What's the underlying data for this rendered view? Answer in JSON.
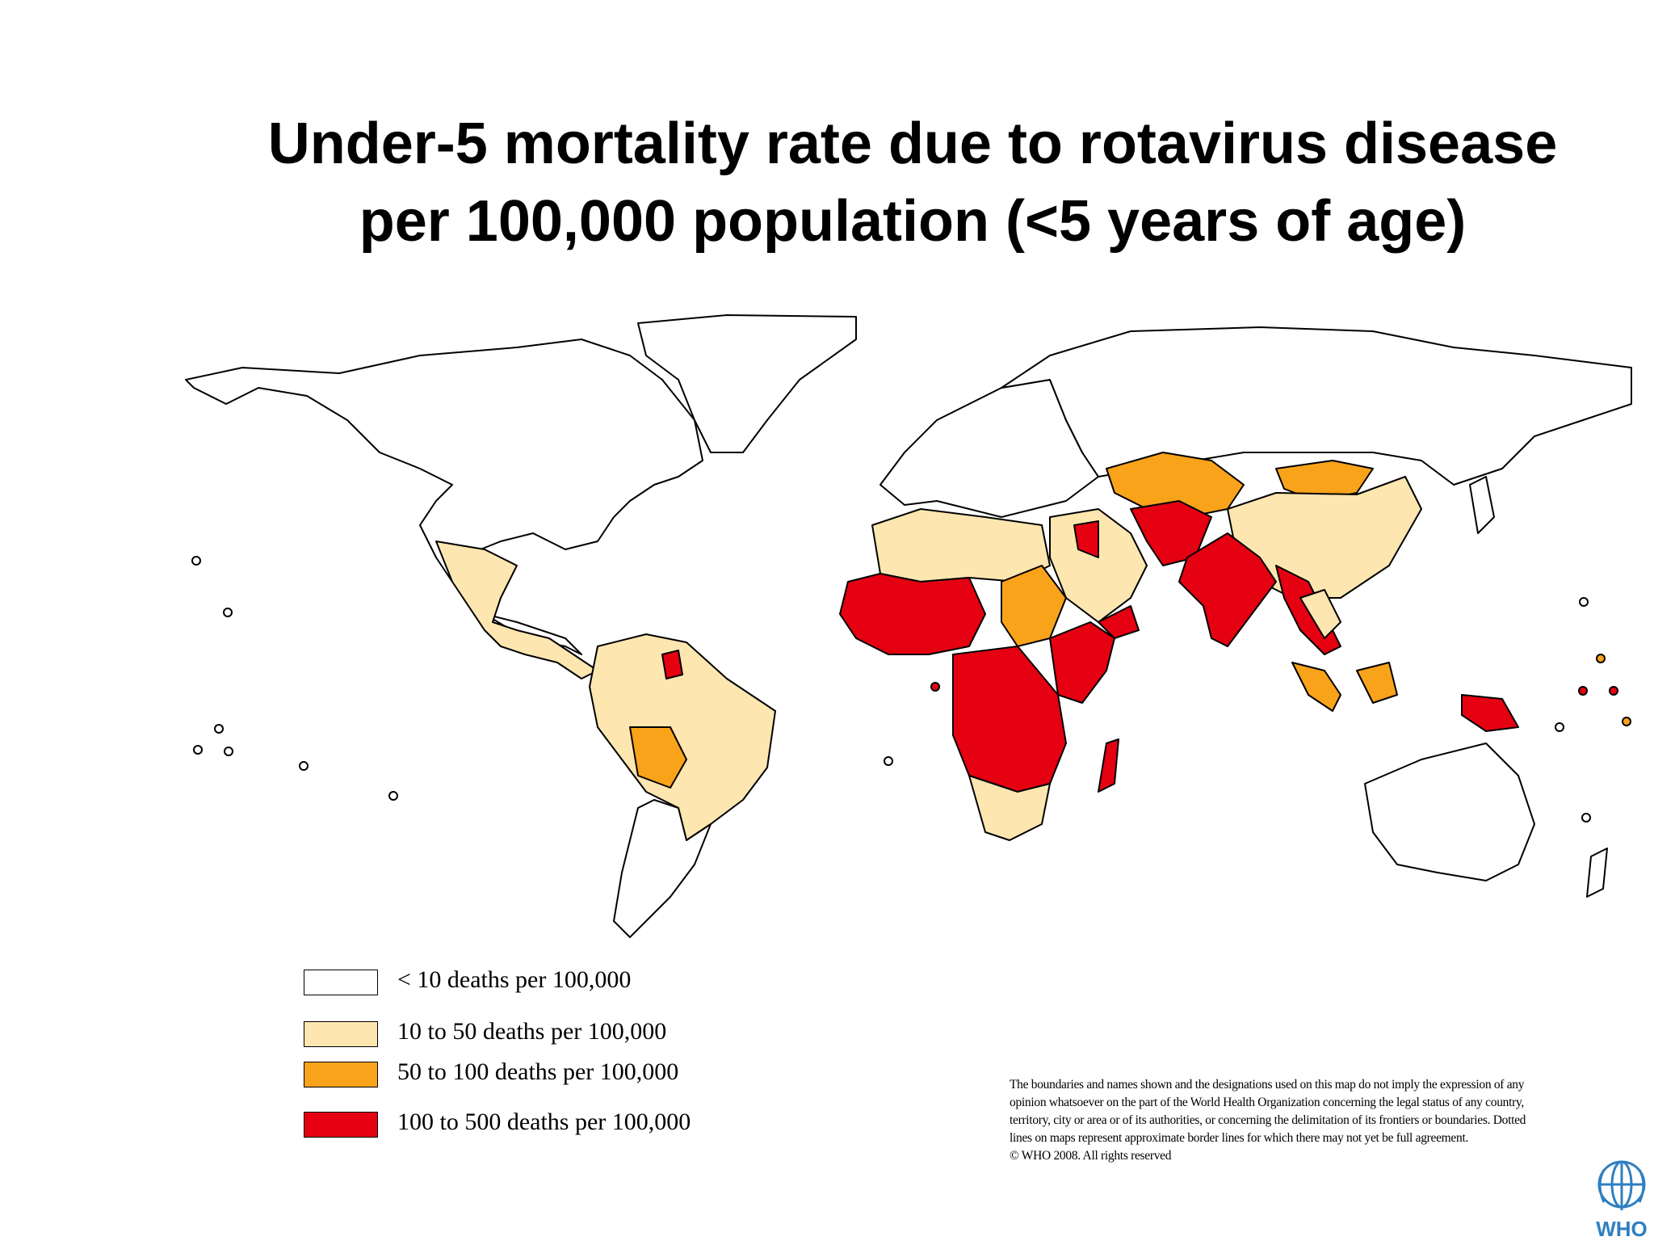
{
  "title": {
    "line1": "Under-5 mortality rate due to rotavirus disease",
    "line2": "per 100,000 population (<5 years of age)"
  },
  "colors": {
    "lt10": "#ffffff",
    "c10_50": "#fde6b0",
    "c50_100": "#f9a31b",
    "c100_500": "#e50012",
    "nodata": "#c8c8c8",
    "outline": "#000000"
  },
  "legend": [
    {
      "label": "< 10 deaths per 100,000",
      "color": "#ffffff"
    },
    {
      "label": "10 to 50 deaths per 100,000",
      "color": "#fde6b0"
    },
    {
      "label": "50 to 100 deaths per 100,000",
      "color": "#f9a31b"
    },
    {
      "label": "100 to 500 deaths per 100,000",
      "color": "#e50012"
    }
  ],
  "disclaimer": {
    "text": "The boundaries and names shown and the designations used on this map do not imply the expression of any opinion whatsoever on the part of the World Health Organization concerning the legal status of any country, territory, city or area or of its authorities, or concerning the delimitation of its frontiers or boundaries. Dotted lines on maps represent approximate border lines for which there may not yet be full agreement.",
    "copyright": "© WHO 2008. All rights reserved"
  },
  "logo": {
    "text": "WHO",
    "icon": "who-emblem-icon"
  }
}
